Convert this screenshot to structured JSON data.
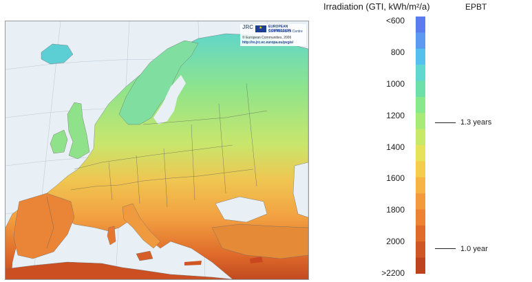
{
  "legend": {
    "title": "Irradiation (GTI,  kWh/m²/a)",
    "epbt_title": "EPBT",
    "colors": [
      "#5a7cf0",
      "#5b9af0",
      "#54c0ee",
      "#5fd9d0",
      "#6ce0a8",
      "#88e88c",
      "#a8ea78",
      "#c8e868",
      "#e6e25a",
      "#f4cd4c",
      "#f6b444",
      "#f39a3c",
      "#ec8232",
      "#e06a2a",
      "#cf5524",
      "#bf421e"
    ],
    "ticks": [
      "<600",
      "800",
      "1000",
      "1200",
      "1400",
      "1600",
      "1800",
      "2000",
      ">2200"
    ],
    "epbt_marks": [
      {
        "label": "1.3 years",
        "irradiation": 1250
      },
      {
        "label": "1.0 year",
        "irradiation": 2050
      }
    ]
  },
  "map": {
    "ec_name": "EUROPEAN COMMISSION",
    "jrc_name": "Joint Research Centre",
    "jrc_mark": "JRC",
    "copyright": "© European Communities, 2006",
    "url": "http://re.jrc.ec.europa.eu/pvgis/"
  }
}
